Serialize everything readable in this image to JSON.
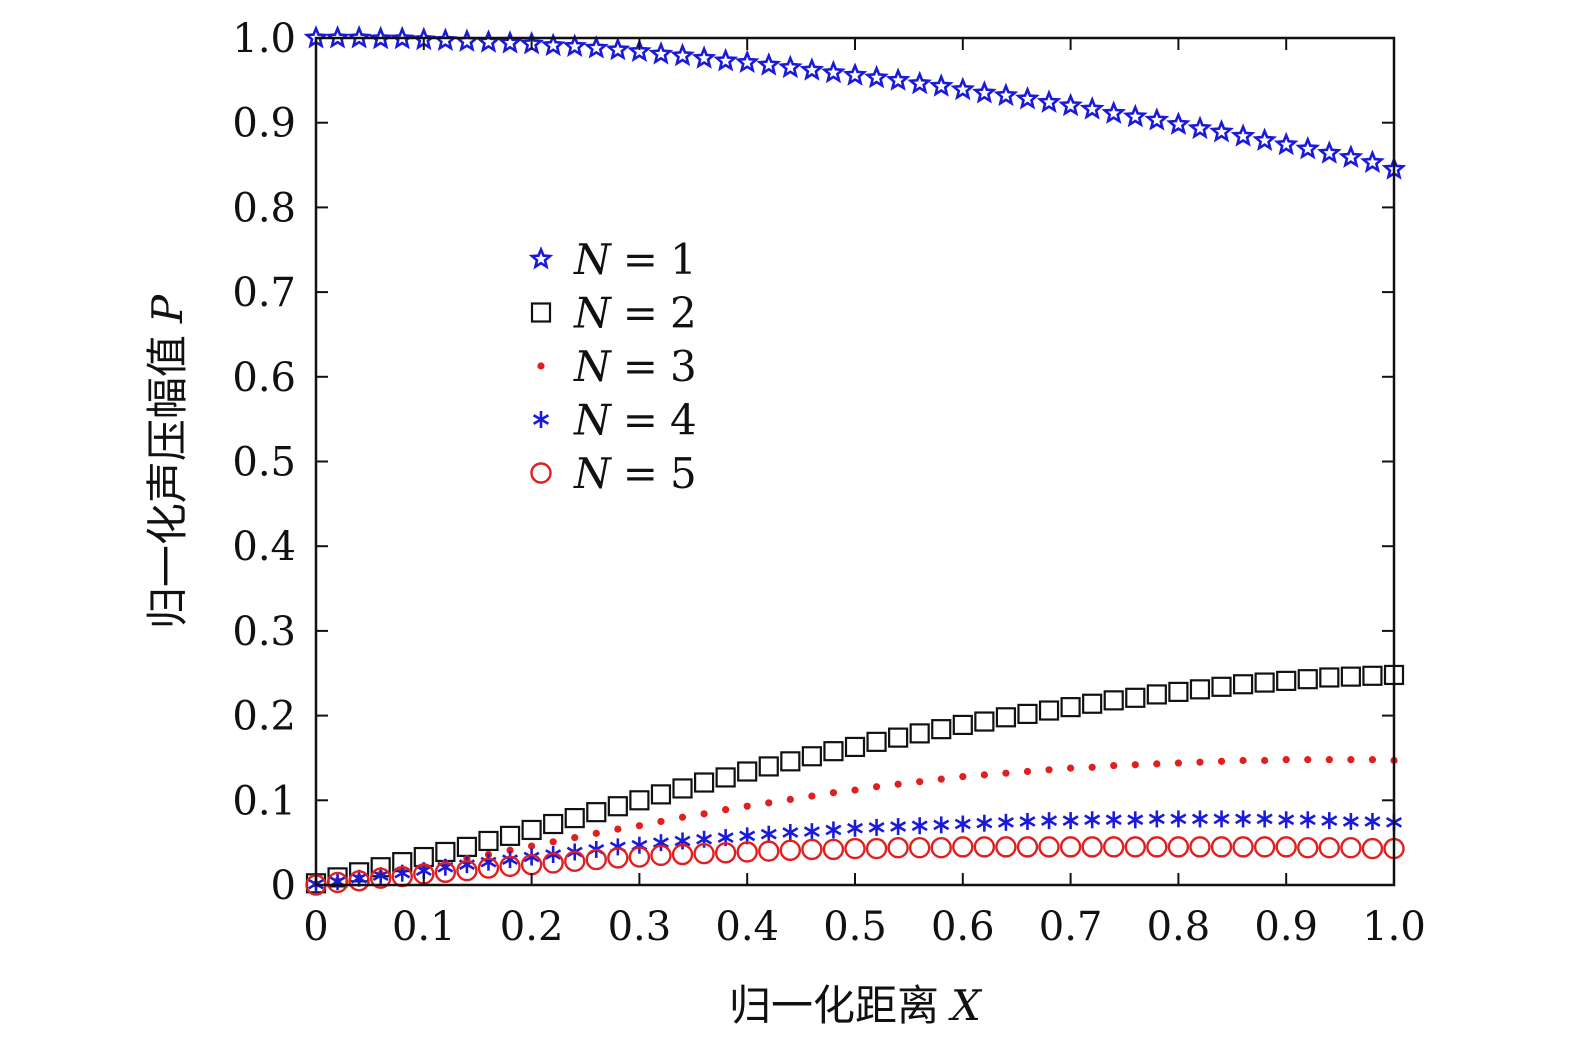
{
  "chart_data": {
    "type": "scatter",
    "xlabel": {
      "text": "归一化距离",
      "var": "X"
    },
    "ylabel": {
      "text": "归一化声压幅值",
      "var": "P"
    },
    "xlim": [
      0,
      1
    ],
    "ylim": [
      0,
      1
    ],
    "xticks": [
      "0",
      "0.1",
      "0.2",
      "0.3",
      "0.4",
      "0.5",
      "0.6",
      "0.7",
      "0.8",
      "0.9",
      "1.0"
    ],
    "yticks": [
      "0",
      "0.1",
      "0.2",
      "0.3",
      "0.4",
      "0.5",
      "0.6",
      "0.7",
      "0.8",
      "0.9",
      "1.0"
    ],
    "grid": false,
    "legend_position": "upper-left-inside",
    "x": [
      0,
      0.02,
      0.04,
      0.06,
      0.08,
      0.1,
      0.12,
      0.14,
      0.16,
      0.18,
      0.2,
      0.22,
      0.24,
      0.26,
      0.28,
      0.3,
      0.32,
      0.34,
      0.36,
      0.38,
      0.4,
      0.42,
      0.44,
      0.46,
      0.48,
      0.5,
      0.52,
      0.54,
      0.56,
      0.58,
      0.6,
      0.62,
      0.64,
      0.66,
      0.68,
      0.7,
      0.72,
      0.74,
      0.76,
      0.78,
      0.8,
      0.82,
      0.84,
      0.86,
      0.88,
      0.9,
      0.92,
      0.94,
      0.96,
      0.98,
      1.0
    ],
    "series": [
      {
        "name_var": "N",
        "name_value": "1",
        "marker": "star-outline",
        "color": "#1a1adb",
        "values": [
          1.0,
          1.0,
          1.0,
          0.999,
          0.999,
          0.998,
          0.997,
          0.996,
          0.995,
          0.994,
          0.993,
          0.991,
          0.99,
          0.988,
          0.986,
          0.984,
          0.981,
          0.979,
          0.976,
          0.973,
          0.971,
          0.968,
          0.965,
          0.962,
          0.959,
          0.956,
          0.953,
          0.95,
          0.946,
          0.943,
          0.939,
          0.935,
          0.932,
          0.928,
          0.924,
          0.92,
          0.916,
          0.911,
          0.907,
          0.903,
          0.898,
          0.893,
          0.889,
          0.884,
          0.879,
          0.874,
          0.869,
          0.864,
          0.859,
          0.853,
          0.845
        ]
      },
      {
        "name_var": "N",
        "name_value": "2",
        "marker": "square-open",
        "color": "#111111",
        "values": [
          0.002,
          0.009,
          0.015,
          0.021,
          0.027,
          0.033,
          0.039,
          0.045,
          0.052,
          0.058,
          0.065,
          0.072,
          0.079,
          0.086,
          0.093,
          0.1,
          0.107,
          0.114,
          0.121,
          0.127,
          0.134,
          0.14,
          0.146,
          0.152,
          0.158,
          0.163,
          0.169,
          0.174,
          0.179,
          0.184,
          0.189,
          0.193,
          0.198,
          0.202,
          0.206,
          0.21,
          0.214,
          0.218,
          0.221,
          0.225,
          0.228,
          0.231,
          0.234,
          0.237,
          0.239,
          0.241,
          0.243,
          0.245,
          0.246,
          0.247,
          0.248
        ]
      },
      {
        "name_var": "N",
        "name_value": "3",
        "marker": "dot",
        "color": "#e02020",
        "values": [
          0.001,
          0.005,
          0.009,
          0.013,
          0.017,
          0.022,
          0.026,
          0.031,
          0.036,
          0.041,
          0.046,
          0.051,
          0.056,
          0.061,
          0.066,
          0.07,
          0.075,
          0.08,
          0.084,
          0.089,
          0.093,
          0.097,
          0.101,
          0.105,
          0.109,
          0.112,
          0.116,
          0.119,
          0.122,
          0.125,
          0.128,
          0.13,
          0.132,
          0.134,
          0.136,
          0.138,
          0.139,
          0.141,
          0.142,
          0.143,
          0.144,
          0.145,
          0.146,
          0.147,
          0.147,
          0.148,
          0.148,
          0.148,
          0.148,
          0.148,
          0.147
        ]
      },
      {
        "name_var": "N",
        "name_value": "4",
        "marker": "asterisk",
        "color": "#1a1adb",
        "values": [
          0.001,
          0.004,
          0.008,
          0.011,
          0.014,
          0.017,
          0.021,
          0.024,
          0.027,
          0.03,
          0.033,
          0.036,
          0.039,
          0.042,
          0.045,
          0.047,
          0.05,
          0.052,
          0.054,
          0.056,
          0.058,
          0.06,
          0.062,
          0.063,
          0.065,
          0.067,
          0.068,
          0.069,
          0.07,
          0.071,
          0.072,
          0.073,
          0.074,
          0.075,
          0.076,
          0.076,
          0.077,
          0.077,
          0.077,
          0.078,
          0.078,
          0.078,
          0.078,
          0.078,
          0.078,
          0.077,
          0.077,
          0.076,
          0.075,
          0.075,
          0.074
        ]
      },
      {
        "name_var": "N",
        "name_value": "5",
        "marker": "circle-open",
        "color": "#e02020",
        "values": [
          0.0,
          0.003,
          0.005,
          0.008,
          0.01,
          0.013,
          0.015,
          0.017,
          0.02,
          0.022,
          0.024,
          0.026,
          0.028,
          0.03,
          0.032,
          0.033,
          0.035,
          0.036,
          0.037,
          0.038,
          0.039,
          0.04,
          0.041,
          0.042,
          0.042,
          0.043,
          0.043,
          0.044,
          0.044,
          0.044,
          0.045,
          0.045,
          0.045,
          0.045,
          0.045,
          0.045,
          0.045,
          0.045,
          0.045,
          0.045,
          0.045,
          0.045,
          0.045,
          0.045,
          0.045,
          0.045,
          0.044,
          0.044,
          0.044,
          0.043,
          0.043
        ]
      }
    ]
  }
}
